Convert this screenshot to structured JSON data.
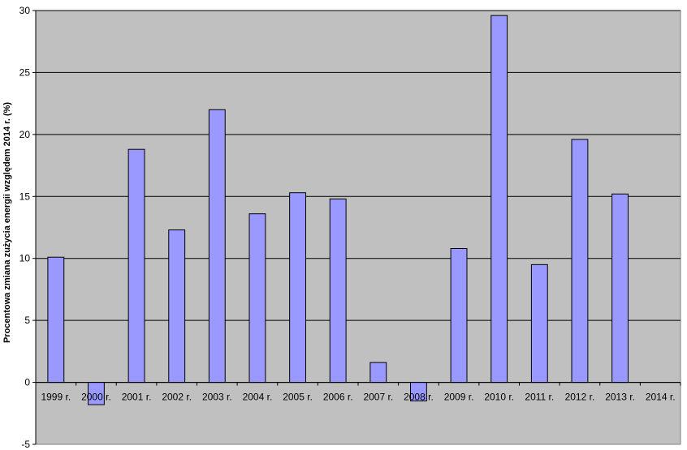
{
  "chart_data": {
    "type": "bar",
    "title": "",
    "xlabel": "",
    "ylabel": "Procentowa zmiana zużycia energii względem 2014 r. (%)",
    "ylim": [
      -5,
      30
    ],
    "yticks": [
      -5,
      0,
      5,
      10,
      15,
      20,
      25,
      30
    ],
    "grid": true,
    "categories": [
      "1999 r.",
      "2000 r.",
      "2001 r.",
      "2002 r.",
      "2003 r.",
      "2004 r.",
      "2005 r.",
      "2006 r.",
      "2007 r.",
      "2008 r.",
      "2009 r.",
      "2010 r.",
      "2011 r.",
      "2012 r.",
      "2013 r.",
      "2014 r."
    ],
    "values": [
      10.1,
      -1.8,
      18.8,
      12.3,
      22.0,
      13.6,
      15.3,
      14.8,
      1.6,
      -1.5,
      10.8,
      29.6,
      9.5,
      19.6,
      15.2,
      0
    ],
    "colors": {
      "plot_background": "#c0c0c0",
      "bar_fill": "#9999ff",
      "bar_stroke": "#000000",
      "gridline": "#000000"
    }
  }
}
